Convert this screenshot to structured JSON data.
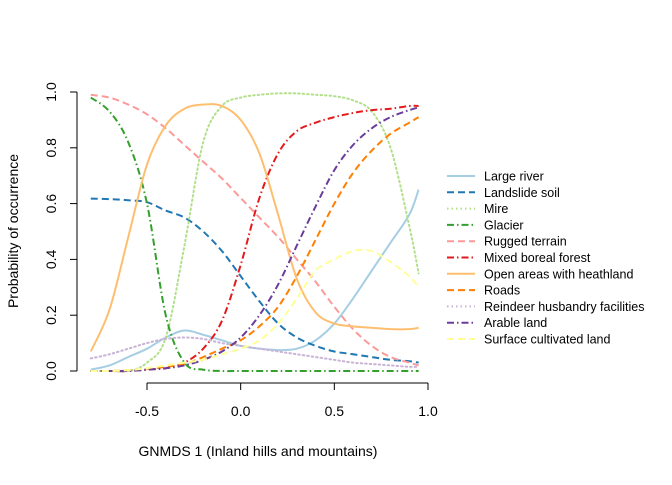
{
  "chart_data": {
    "type": "line",
    "title": "",
    "xlabel": "GNMDS 1 (Inland hills and mountains)",
    "ylabel": "Probability of occurrence",
    "xlim": [
      -0.84,
      0.97
    ],
    "ylim": [
      0,
      1
    ],
    "x_ticks": [
      -0.5,
      0.0,
      0.5,
      1.0
    ],
    "x_tick_labels": [
      "-0.5",
      "0.0",
      "0.5",
      "1.0"
    ],
    "y_ticks": [
      0.0,
      0.2,
      0.4,
      0.6,
      0.8,
      1.0
    ],
    "y_tick_labels": [
      "0.0",
      "0.2",
      "0.4",
      "0.6",
      "0.8",
      "1.0"
    ],
    "grid": false,
    "legend_position": "right",
    "x": [
      -0.8,
      -0.7,
      -0.6,
      -0.5,
      -0.4,
      -0.3,
      -0.2,
      -0.1,
      0.0,
      0.1,
      0.2,
      0.3,
      0.4,
      0.5,
      0.6,
      0.7,
      0.8,
      0.9,
      0.95
    ],
    "series": [
      {
        "name": "Large river",
        "color": "#a6cee3",
        "dash": "solid",
        "values": [
          0.005,
          0.02,
          0.05,
          0.08,
          0.12,
          0.145,
          0.13,
          0.11,
          0.09,
          0.08,
          0.075,
          0.08,
          0.11,
          0.17,
          0.26,
          0.36,
          0.46,
          0.56,
          0.65
        ]
      },
      {
        "name": "Landslide soil",
        "color": "#1f78b4",
        "dash": "dashed",
        "values": [
          0.618,
          0.616,
          0.612,
          0.605,
          0.575,
          0.55,
          0.5,
          0.43,
          0.34,
          0.25,
          0.17,
          0.12,
          0.09,
          0.07,
          0.06,
          0.05,
          0.04,
          0.035,
          0.03
        ]
      },
      {
        "name": "Mire",
        "color": "#b2df8a",
        "dash": "dotted",
        "values": [
          0.0,
          0.0,
          0.0,
          0.03,
          0.12,
          0.45,
          0.82,
          0.95,
          0.98,
          0.99,
          0.995,
          0.995,
          0.99,
          0.985,
          0.97,
          0.93,
          0.8,
          0.52,
          0.35
        ]
      },
      {
        "name": "Glacier",
        "color": "#33a02c",
        "dash": "dashdot",
        "values": [
          0.98,
          0.93,
          0.82,
          0.6,
          0.2,
          0.03,
          0.005,
          0.0,
          0.0,
          0.0,
          0.0,
          0.0,
          0.0,
          0.0,
          0.0,
          0.0,
          0.0,
          0.0,
          0.0
        ]
      },
      {
        "name": "Rugged terrain",
        "color": "#fb9a99",
        "dash": "dashed",
        "values": [
          0.99,
          0.98,
          0.955,
          0.92,
          0.87,
          0.81,
          0.75,
          0.69,
          0.62,
          0.55,
          0.48,
          0.4,
          0.32,
          0.23,
          0.15,
          0.09,
          0.05,
          0.03,
          0.02
        ]
      },
      {
        "name": "Mixed boreal forest",
        "color": "#e31a1c",
        "dash": "dashdot",
        "values": [
          0.0,
          0.0,
          0.0,
          0.005,
          0.01,
          0.03,
          0.08,
          0.18,
          0.38,
          0.62,
          0.78,
          0.86,
          0.89,
          0.91,
          0.925,
          0.935,
          0.94,
          0.95,
          0.95
        ]
      },
      {
        "name": "Open areas with heathland",
        "color": "#fdbf6f",
        "dash": "solid",
        "values": [
          0.07,
          0.22,
          0.48,
          0.74,
          0.88,
          0.94,
          0.955,
          0.95,
          0.9,
          0.78,
          0.56,
          0.33,
          0.21,
          0.17,
          0.16,
          0.155,
          0.15,
          0.15,
          0.155
        ]
      },
      {
        "name": "Roads",
        "color": "#ff7f00",
        "dash": "dashed",
        "values": [
          0.0,
          0.0,
          0.003,
          0.008,
          0.015,
          0.025,
          0.05,
          0.08,
          0.11,
          0.16,
          0.23,
          0.34,
          0.47,
          0.6,
          0.71,
          0.79,
          0.85,
          0.89,
          0.91
        ]
      },
      {
        "name": "Reindeer husbandry facilities",
        "color": "#cab2d6",
        "dash": "dotted",
        "values": [
          0.045,
          0.06,
          0.08,
          0.1,
          0.115,
          0.12,
          0.115,
          0.1,
          0.09,
          0.08,
          0.07,
          0.06,
          0.05,
          0.04,
          0.03,
          0.025,
          0.02,
          0.015,
          0.015
        ]
      },
      {
        "name": "Arable land",
        "color": "#6a3d9a",
        "dash": "dashdot",
        "values": [
          0.0,
          0.0,
          0.0,
          0.005,
          0.01,
          0.02,
          0.04,
          0.07,
          0.12,
          0.2,
          0.31,
          0.45,
          0.59,
          0.72,
          0.81,
          0.87,
          0.91,
          0.935,
          0.945
        ]
      },
      {
        "name": "Surface cultivated land",
        "color": "#ffff99",
        "dash": "dashed",
        "values": [
          0.0,
          0.0,
          0.003,
          0.01,
          0.02,
          0.03,
          0.04,
          0.06,
          0.08,
          0.11,
          0.17,
          0.26,
          0.36,
          0.4,
          0.43,
          0.43,
          0.39,
          0.34,
          0.3
        ]
      }
    ]
  }
}
